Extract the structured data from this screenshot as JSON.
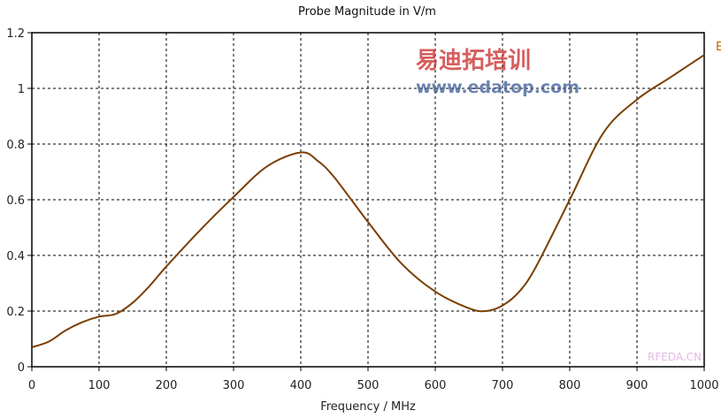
{
  "chart_data": {
    "type": "line",
    "title": "Probe Magnitude in V/m",
    "xlabel": "Frequency / MHz",
    "ylabel": "",
    "xlim": [
      0,
      1000
    ],
    "ylim": [
      0,
      1.2
    ],
    "xticks": [
      0,
      100,
      200,
      300,
      400,
      500,
      600,
      700,
      800,
      900,
      1000
    ],
    "yticks": [
      0,
      0.2,
      0.4,
      0.6,
      0.8,
      1,
      1.2
    ],
    "xtick_labels": [
      "0",
      "100",
      "200",
      "300",
      "400",
      "500",
      "600",
      "700",
      "800",
      "900",
      "1000"
    ],
    "ytick_labels": [
      "0",
      "0.2",
      "0.4",
      "0.6",
      "0.8",
      "1",
      "1.2"
    ],
    "grid": true,
    "legend": {
      "entries": [
        "E"
      ],
      "placement": "right (truncated)"
    },
    "series": [
      {
        "name": "E",
        "color": "#7a3f00",
        "x": [
          0,
          25,
          50,
          75,
          100,
          125,
          150,
          175,
          200,
          250,
          300,
          350,
          400,
          425,
          450,
          500,
          550,
          600,
          650,
          675,
          700,
          725,
          750,
          800,
          850,
          900,
          950,
          1000
        ],
        "y": [
          0.07,
          0.09,
          0.13,
          0.16,
          0.18,
          0.19,
          0.23,
          0.29,
          0.36,
          0.49,
          0.61,
          0.72,
          0.77,
          0.74,
          0.68,
          0.52,
          0.37,
          0.27,
          0.21,
          0.2,
          0.22,
          0.27,
          0.36,
          0.6,
          0.84,
          0.96,
          1.04,
          1.12
        ]
      }
    ]
  },
  "watermark": {
    "site1": "RFEDA.CN",
    "brand": "易迪拓培训",
    "site2": "www.edatop.com"
  }
}
